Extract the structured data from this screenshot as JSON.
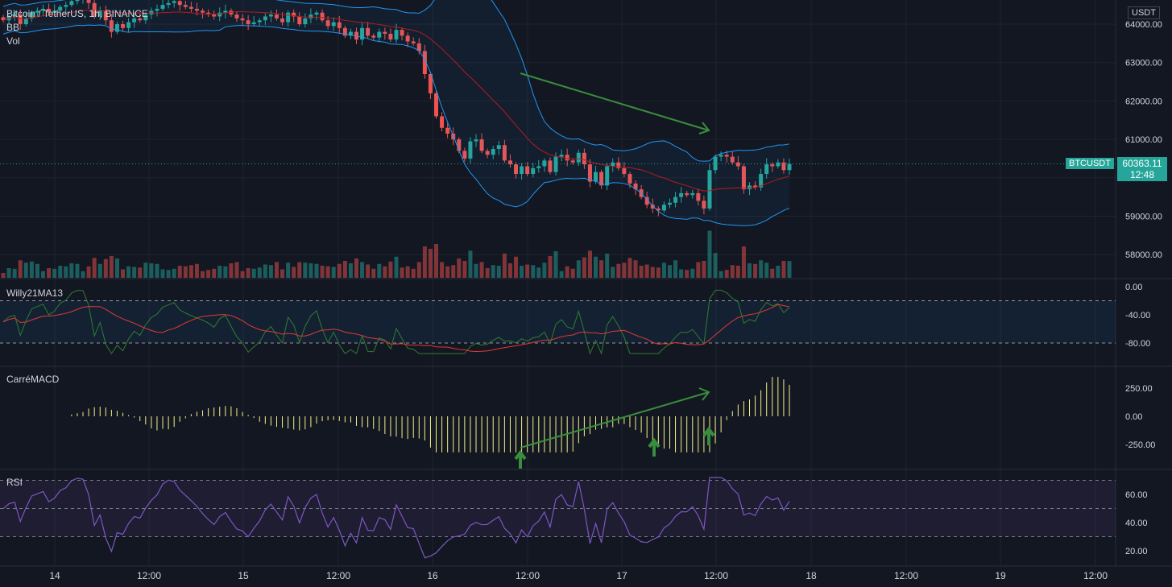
{
  "header": {
    "symbol_line": "Bitcoin / TetherUS, 1h, BINANCE",
    "indicator_bb": "BB",
    "indicator_vol": "Vol"
  },
  "price_axis": {
    "currency": "USDT",
    "ticks": [
      "64000.00",
      "63000.00",
      "62000.00",
      "61000.00",
      "59000.00",
      "58000.00"
    ]
  },
  "last_price": {
    "symbol": "BTCUSDT",
    "value": "60363.11",
    "countdown": "12:48"
  },
  "panes": {
    "willy": {
      "title": "Willy21MA13",
      "ticks": [
        "0.00",
        "-40.00",
        "-80.00"
      ]
    },
    "macd": {
      "title": "CarréMACD",
      "ticks": [
        "250.00",
        "0.00",
        "-250.00"
      ]
    },
    "rsi": {
      "title": "RSI",
      "ticks": [
        "60.00",
        "40.00",
        "20.00"
      ]
    }
  },
  "time_axis": [
    "14",
    "12:00",
    "15",
    "12:00",
    "16",
    "12:00",
    "17",
    "12:00",
    "18",
    "12:00",
    "19",
    "12:00"
  ],
  "colors": {
    "bg": "#131722",
    "up": "#26a69a",
    "down": "#ef5350",
    "grid": "#1f2330",
    "bb": "#2196f3",
    "basis": "#b71c1c",
    "willy_line": "#2e7d32",
    "willy_ma": "#e53935",
    "macd_bars": "#f5f08a",
    "rsi_line": "#7e57c2",
    "arrow": "#388e3c"
  },
  "chart_data": {
    "type": "candlestick",
    "title": "Bitcoin / TetherUS, 1h, BINANCE",
    "unit": "USDT",
    "ylim": [
      57700,
      64300
    ],
    "last_price": 60363.11,
    "close_series_approx": [
      64100,
      64200,
      64250,
      64000,
      64150,
      64300,
      64350,
      64400,
      64300,
      64350,
      64450,
      64500,
      64600,
      64650,
      64700,
      64550,
      64200,
      64350,
      64100,
      63800,
      64000,
      63900,
      64050,
      64150,
      64100,
      64250,
      64350,
      64400,
      64500,
      64550,
      64600,
      64500,
      64450,
      64400,
      64350,
      64300,
      64250,
      64200,
      64300,
      64350,
      64250,
      64150,
      64100,
      64000,
      64050,
      64100,
      64200,
      64250,
      64150,
      64050,
      64300,
      64200,
      64000,
      64150,
      64250,
      64300,
      64100,
      63950,
      64050,
      63900,
      63700,
      63800,
      63600,
      63900,
      63700,
      63650,
      63800,
      63750,
      63600,
      63850,
      63700,
      63550,
      63500,
      63300,
      62700,
      62200,
      61600,
      61300,
      61150,
      61000,
      60700,
      60500,
      60950,
      61000,
      60700,
      60600,
      60750,
      60850,
      60450,
      60350,
      60100,
      60300,
      60100,
      60250,
      60300,
      60450,
      60150,
      60550,
      60600,
      60450,
      60400,
      60650,
      60350,
      59900,
      60150,
      59800,
      60300,
      60400,
      60250,
      60100,
      59850,
      59700,
      59500,
      59300,
      59200,
      59150,
      59300,
      59350,
      59500,
      59600,
      59550,
      59600,
      59400,
      59200,
      60200,
      60550,
      60600,
      60550,
      60400,
      60300,
      59700,
      59800,
      59750,
      60100,
      60350,
      60300,
      60400,
      60200,
      60363
    ],
    "volume_scale": "relative",
    "indicators": {
      "willy21ma13": {
        "levels": [
          0,
          -20,
          -80
        ],
        "ylim": [
          -100,
          0
        ]
      },
      "carre_macd": {
        "ylim": [
          -330,
          360
        ]
      },
      "rsi": {
        "levels": [
          30,
          70
        ],
        "ylim": [
          10,
          75
        ]
      }
    },
    "annotations": [
      {
        "type": "arrow",
        "pane": "price",
        "desc": "descending upper Bollinger band"
      },
      {
        "type": "arrow",
        "pane": "macd",
        "desc": "rising MACD lows"
      },
      {
        "type": "arrow-up",
        "pane": "macd",
        "count": 3
      }
    ]
  }
}
